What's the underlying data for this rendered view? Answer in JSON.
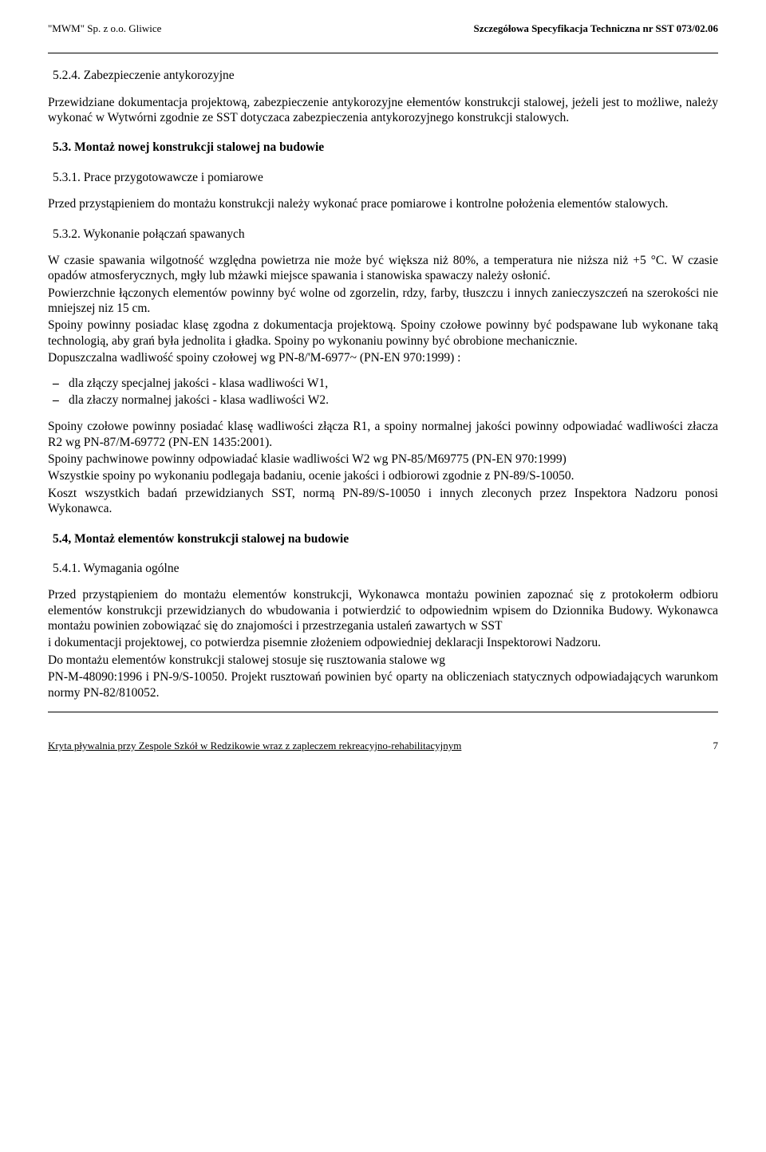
{
  "header": {
    "left": "\"MWM\" Sp. z o.o. Gliwice",
    "right": "Szczegółowa Specyfikacja Techniczna nr SST 073/02.06"
  },
  "s524": {
    "num": "5.2.4. Zabezpieczenie antykorozyjne",
    "p1": "Przewidziane dokumentacja projektową, zabezpieczenie antykorozyjne ełementów konstrukcji stalowej, jeżeli jest to możliwe, należy wykonać w Wytwórni zgodnie ze SST dotyczaca zabezpieczenia antykorozyjnego konstrukcji stalowych."
  },
  "s53": {
    "title": "5.3. Montaż nowej konstrukcji stalowej na budowie"
  },
  "s531": {
    "num": "5.3.1. Prace przygotowawcze i pomiarowe",
    "p1": "Przed przystąpieniem do montażu konstrukcji należy wykonać prace pomiarowe i kontrolne położenia elementów stalowych."
  },
  "s532": {
    "num": "5.3.2. Wykonanie połączań spawanych",
    "p1": "W czasie spawania wilgotność względna powietrza nie może być większa niż 80%, a temperatura nie niższa niż +5 °C. W czasie opadów atmosferycznych, mgły lub mżawki miejsce spawania i stanowiska spawaczy należy osłonić.",
    "p2": "Powierzchnie łączonych elementów powinny być wolne od zgorzelin, rdzy, farby, tłuszczu i innych zanieczyszczeń na szerokości nie mniejszej niz 15 cm.",
    "p3": "Spoiny powinny posiadac klasę zgodna z dokumentacja projektową. Spoiny czołowe powinny być podspawane lub wykonane taką technologią, aby grań była jednolita i gładka. Spoiny po wykonaniu powinny być obrobione mechanicznie.",
    "p4": "Dopuszczalna wadliwość spoiny czołowej wg  PN-8/'M-6977~ (PN-EN 970:1999) :",
    "li1": "dla złączy specjalnej jakości - klasa wadliwości W1,",
    "li2": "dla złaczy normalnej jakości - klasa wadliwości W2.",
    "p5": "Spoiny czołowe powinny posiadać klasę wadliwości złącza R1, a spoiny normalnej jakości powinny odpowiadać wadliwości złacza R2 wg PN-87/M-69772 (PN-EN 1435:2001).",
    "p6": "Spoiny pachwinowe powinny odpowiadać klasie wadliwości W2 wg PN-85/M69775 (PN-EN 970:1999)",
    "p7": "Wszystkie spoiny po wykonaniu podlegaja badaniu, ocenie jakości i odbiorowi zgodnie z PN-89/S-10050.",
    "p8": "Koszt wszystkich badań przewidzianych SST, normą PN-89/S-10050 i innych zleconych przez Inspektora Nadzoru ponosi Wykonawca."
  },
  "s54": {
    "title": "5.4, Montaż elementów konstrukcji stalowej na budowie"
  },
  "s541": {
    "num": "5.4.1. Wymagania ogólne",
    "p1": "Przed przystąpieniem do montażu elementów konstrukcji, Wykonawca montażu powinien zapoznać się z protokołerm odbioru elementów konstrukcji przewidzianych do wbudowania  i potwierdzić to odpowiednim wpisem do Dzionnika Budowy. Wykonawca montażu powinien zobowiązać się do znajomości i przestrzegania ustaleń zawartych w SST",
    "p2": "i dokumentacji projektowej, co potwierdza pisemnie złożeniem odpowiedniej deklaracji Inspektorowi Nadzoru.",
    "p3": " Do montażu elementów konstrukcji stalowej stosuje się rusztowania stalowe wg",
    "p4": "PN-M-48090:1996 i PN-9/S-10050. Projekt rusztowań powinien być oparty na obliczeniach statycznych odpowiadających warunkom normy PN-82/810052."
  },
  "footer": {
    "left": "Kryta pływalnia przy Zespole Szkół w Redzikowie wraz z zapleczem rekreacyjno-rehabilitacyjnym",
    "page": "7"
  }
}
